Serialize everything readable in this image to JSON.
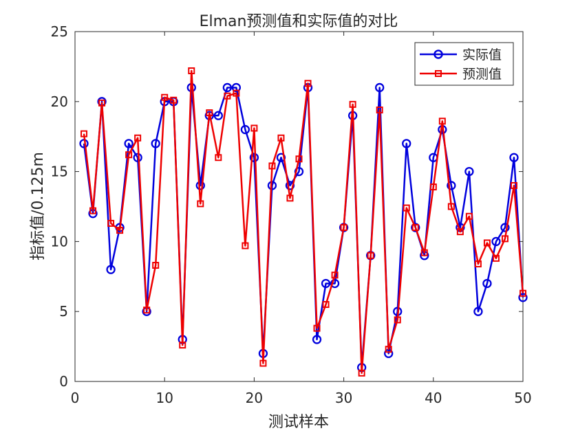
{
  "chart_data": {
    "type": "line",
    "title": "Elman预测值和实际值的对比",
    "xlabel": "测试样本",
    "ylabel": "指标值/0.125m",
    "xlim": [
      0,
      50
    ],
    "ylim": [
      0,
      25
    ],
    "xticks": [
      0,
      10,
      20,
      30,
      40,
      50
    ],
    "yticks": [
      0,
      5,
      10,
      15,
      20,
      25
    ],
    "grid": false,
    "legend_position": "top-right",
    "x": [
      1,
      2,
      3,
      4,
      5,
      6,
      7,
      8,
      9,
      10,
      11,
      12,
      13,
      14,
      15,
      16,
      17,
      18,
      19,
      20,
      21,
      22,
      23,
      24,
      25,
      26,
      27,
      28,
      29,
      30,
      31,
      32,
      33,
      34,
      35,
      36,
      37,
      38,
      39,
      40,
      41,
      42,
      43,
      44,
      45,
      46,
      47,
      48,
      49,
      50
    ],
    "series": [
      {
        "name": "实际值",
        "color": "#0000dd",
        "marker": "circle",
        "values": [
          17,
          12,
          20,
          8,
          11,
          17,
          16,
          5,
          17,
          20,
          20,
          3,
          21,
          14,
          19,
          19,
          21,
          21,
          18,
          16,
          2,
          14,
          16,
          14,
          15,
          21,
          3,
          7,
          7,
          11,
          19,
          1,
          9,
          21,
          2,
          5,
          17,
          11,
          9,
          16,
          18,
          14,
          11,
          15,
          5,
          7,
          10,
          11,
          16,
          6
        ]
      },
      {
        "name": "预测值",
        "color": "#ee0000",
        "marker": "square",
        "values": [
          17.7,
          12.2,
          19.9,
          11.3,
          10.8,
          16.2,
          17.4,
          5.1,
          8.3,
          20.3,
          20.1,
          2.6,
          22.2,
          12.7,
          19.2,
          16.0,
          20.4,
          20.6,
          9.7,
          18.1,
          1.3,
          15.4,
          17.4,
          13.1,
          15.9,
          21.3,
          3.8,
          5.5,
          7.6,
          11.0,
          19.8,
          0.6,
          9.0,
          19.4,
          2.3,
          4.4,
          12.4,
          11.0,
          9.2,
          13.9,
          18.6,
          12.5,
          10.7,
          11.8,
          8.4,
          9.9,
          8.8,
          10.2,
          14.0,
          6.3
        ]
      }
    ]
  }
}
